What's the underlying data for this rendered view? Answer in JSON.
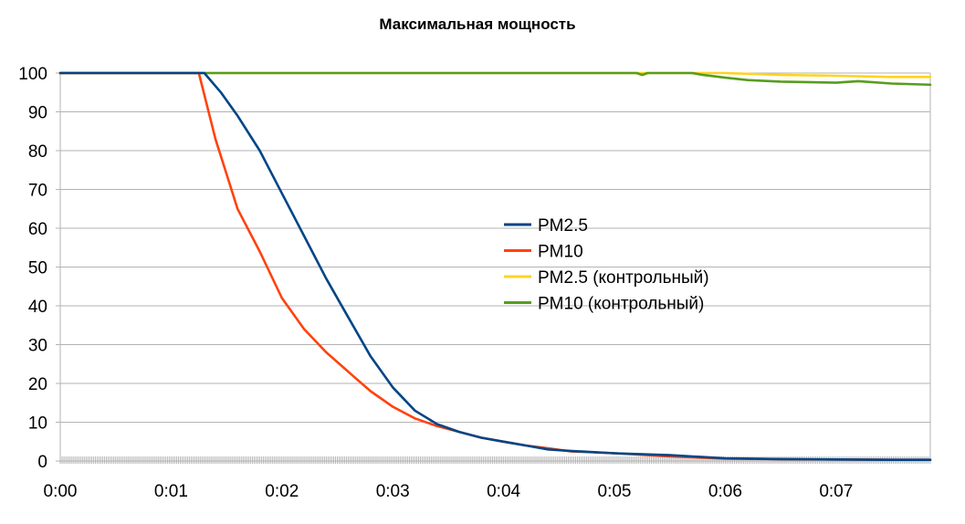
{
  "chart_data": {
    "type": "line",
    "title": "Максимальная мощность",
    "xlabel": "",
    "ylabel": "",
    "x_ticks": [
      "0:00",
      "0:01",
      "0:02",
      "0:03",
      "0:04",
      "0:05",
      "0:06",
      "0:07"
    ],
    "y_ticks": [
      "0",
      "10",
      "20",
      "30",
      "40",
      "50",
      "60",
      "70",
      "80",
      "90",
      "100"
    ],
    "xlim_minutes": [
      0,
      7.85
    ],
    "ylim": [
      0,
      100
    ],
    "grid": "horizontal",
    "legend_position": "center-right",
    "series": [
      {
        "name": "PM2.5",
        "color": "#004586",
        "x_minutes": [
          0,
          1.0,
          1.3,
          1.45,
          1.6,
          1.8,
          2.0,
          2.2,
          2.4,
          2.6,
          2.8,
          3.0,
          3.2,
          3.4,
          3.6,
          3.8,
          4.0,
          4.2,
          4.4,
          4.6,
          5.0,
          5.5,
          6.0,
          6.5,
          7.0,
          7.5,
          7.85
        ],
        "values": [
          100,
          100,
          100,
          95,
          89,
          80,
          69,
          58,
          47,
          37,
          27,
          19,
          13,
          9.5,
          7.5,
          6,
          5,
          4,
          3,
          2.6,
          2,
          1.5,
          0.7,
          0.5,
          0.4,
          0.3,
          0.3
        ]
      },
      {
        "name": "PM10",
        "color": "#ff420e",
        "x_minutes": [
          0,
          1.0,
          1.25,
          1.4,
          1.5,
          1.6,
          1.8,
          2.0,
          2.2,
          2.4,
          2.6,
          2.8,
          3.0,
          3.2,
          3.4,
          3.6,
          3.8,
          4.0,
          4.2,
          4.4,
          4.6,
          5.0,
          5.5,
          6.0,
          6.5,
          7.0,
          7.5,
          7.85
        ],
        "values": [
          100,
          100,
          100,
          83,
          74,
          65,
          54,
          42,
          34,
          28,
          23,
          18,
          14,
          11,
          9,
          7.5,
          6,
          5,
          4,
          3.3,
          2.5,
          2,
          1.2,
          0.6,
          0.5,
          0.4,
          0.3,
          0.3
        ]
      },
      {
        "name": "PM2.5 (контрольный)",
        "color": "#ffd320",
        "x_minutes": [
          0,
          1.0,
          2.0,
          3.0,
          4.0,
          5.0,
          5.8,
          6.0,
          6.5,
          7.0,
          7.5,
          7.85
        ],
        "values": [
          100,
          100,
          100,
          100,
          100,
          100,
          100,
          100,
          99.5,
          99.3,
          99,
          99
        ]
      },
      {
        "name": "PM10 (контрольный)",
        "color": "#579d1c",
        "x_minutes": [
          0,
          1.0,
          2.0,
          3.0,
          4.0,
          5.0,
          5.2,
          5.25,
          5.3,
          5.7,
          5.8,
          6.0,
          6.2,
          6.5,
          7.0,
          7.2,
          7.5,
          7.85
        ],
        "values": [
          100,
          100,
          100,
          100,
          100,
          100,
          100,
          99.5,
          100,
          100,
          99.5,
          98.8,
          98.2,
          97.8,
          97.5,
          97.9,
          97.3,
          97
        ]
      }
    ]
  }
}
